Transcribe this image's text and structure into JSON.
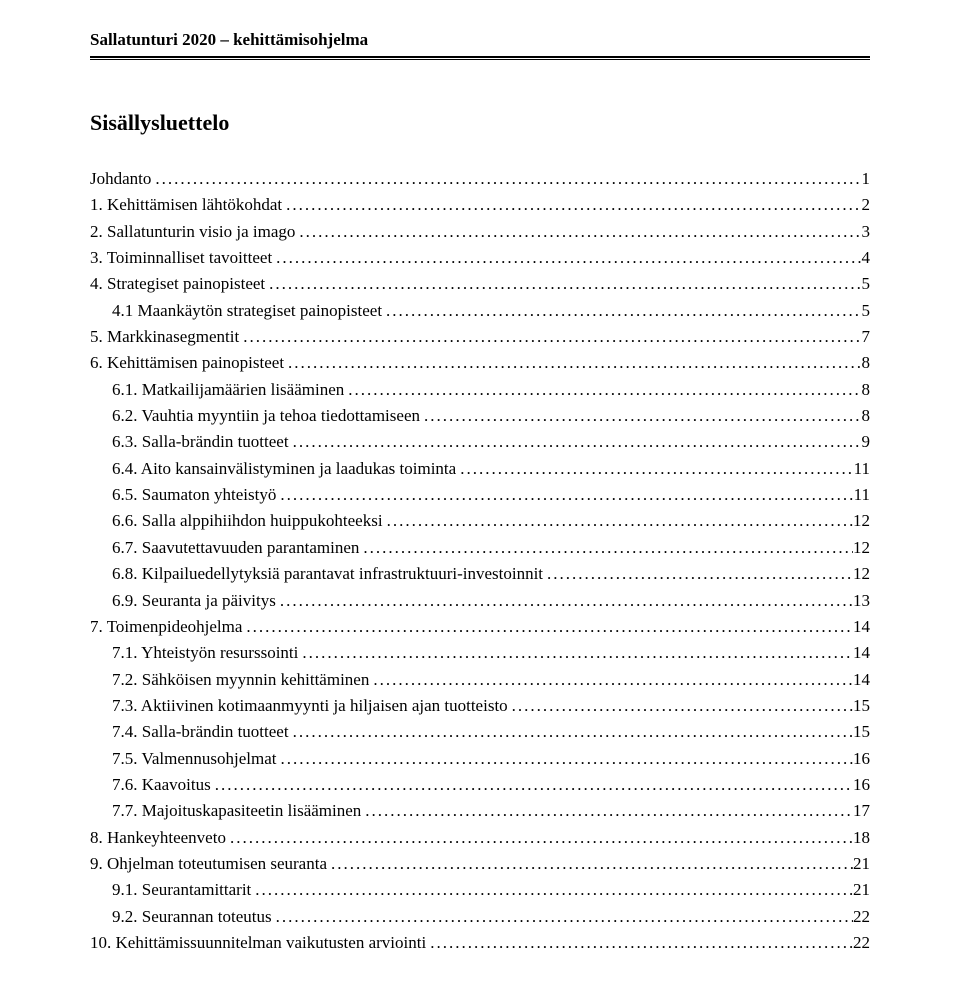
{
  "header": "Sallatunturi 2020 – kehittämisohjelma",
  "tocTitle": "Sisällysluettelo",
  "toc": [
    {
      "label": "Johdanto",
      "page": "1",
      "indent": 0
    },
    {
      "label": "1. Kehittämisen lähtökohdat",
      "page": "2",
      "indent": 0
    },
    {
      "label": "2. Sallatunturin visio ja imago",
      "page": "3",
      "indent": 0
    },
    {
      "label": "3. Toiminnalliset tavoitteet",
      "page": "4",
      "indent": 0
    },
    {
      "label": "4. Strategiset painopisteet",
      "page": "5",
      "indent": 0
    },
    {
      "label": "4.1 Maankäytön strategiset painopisteet",
      "page": "5",
      "indent": 1
    },
    {
      "label": "5. Markkinasegmentit",
      "page": "7",
      "indent": 0
    },
    {
      "label": "6. Kehittämisen painopisteet",
      "page": "8",
      "indent": 0
    },
    {
      "label": "6.1. Matkailijamäärien lisääminen",
      "page": "8",
      "indent": 1
    },
    {
      "label": "6.2. Vauhtia myyntiin ja tehoa tiedottamiseen",
      "page": "8",
      "indent": 1
    },
    {
      "label": "6.3. Salla-brändin tuotteet",
      "page": "9",
      "indent": 1
    },
    {
      "label": "6.4. Aito kansainvälistyminen ja laadukas toiminta",
      "page": "11",
      "indent": 1
    },
    {
      "label": "6.5. Saumaton yhteistyö",
      "page": "11",
      "indent": 1
    },
    {
      "label": "6.6. Salla alppihiihdon huippukohteeksi",
      "page": "12",
      "indent": 1
    },
    {
      "label": "6.7. Saavutettavuuden parantaminen",
      "page": "12",
      "indent": 1
    },
    {
      "label": "6.8. Kilpailuedellytyksiä parantavat infrastruktuuri-investoinnit",
      "page": "12",
      "indent": 1
    },
    {
      "label": "6.9. Seuranta ja päivitys",
      "page": "13",
      "indent": 1
    },
    {
      "label": "7. Toimenpideohjelma",
      "page": "14",
      "indent": 0
    },
    {
      "label": "7.1. Yhteistyön resurssointi",
      "page": "14",
      "indent": 1
    },
    {
      "label": "7.2. Sähköisen myynnin kehittäminen",
      "page": "14",
      "indent": 1
    },
    {
      "label": "7.3. Aktiivinen kotimaanmyynti ja hiljaisen ajan tuotteisto",
      "page": "15",
      "indent": 1
    },
    {
      "label": "7.4. Salla-brändin tuotteet",
      "page": "15",
      "indent": 1
    },
    {
      "label": "7.5. Valmennusohjelmat",
      "page": "16",
      "indent": 1
    },
    {
      "label": "7.6. Kaavoitus",
      "page": "16",
      "indent": 1
    },
    {
      "label": "7.7. Majoituskapasiteetin lisääminen",
      "page": "17",
      "indent": 1
    },
    {
      "label": "8. Hankeyhteenveto",
      "page": "18",
      "indent": 0
    },
    {
      "label": "9. Ohjelman toteutumisen seuranta",
      "page": "21",
      "indent": 0
    },
    {
      "label": "9.1. Seurantamittarit",
      "page": "21",
      "indent": 1
    },
    {
      "label": "9.2. Seurannan toteutus",
      "page": "22",
      "indent": 1
    },
    {
      "label": "10. Kehittämissuunnitelman vaikutusten arviointi",
      "page": "22",
      "indent": 0
    }
  ]
}
